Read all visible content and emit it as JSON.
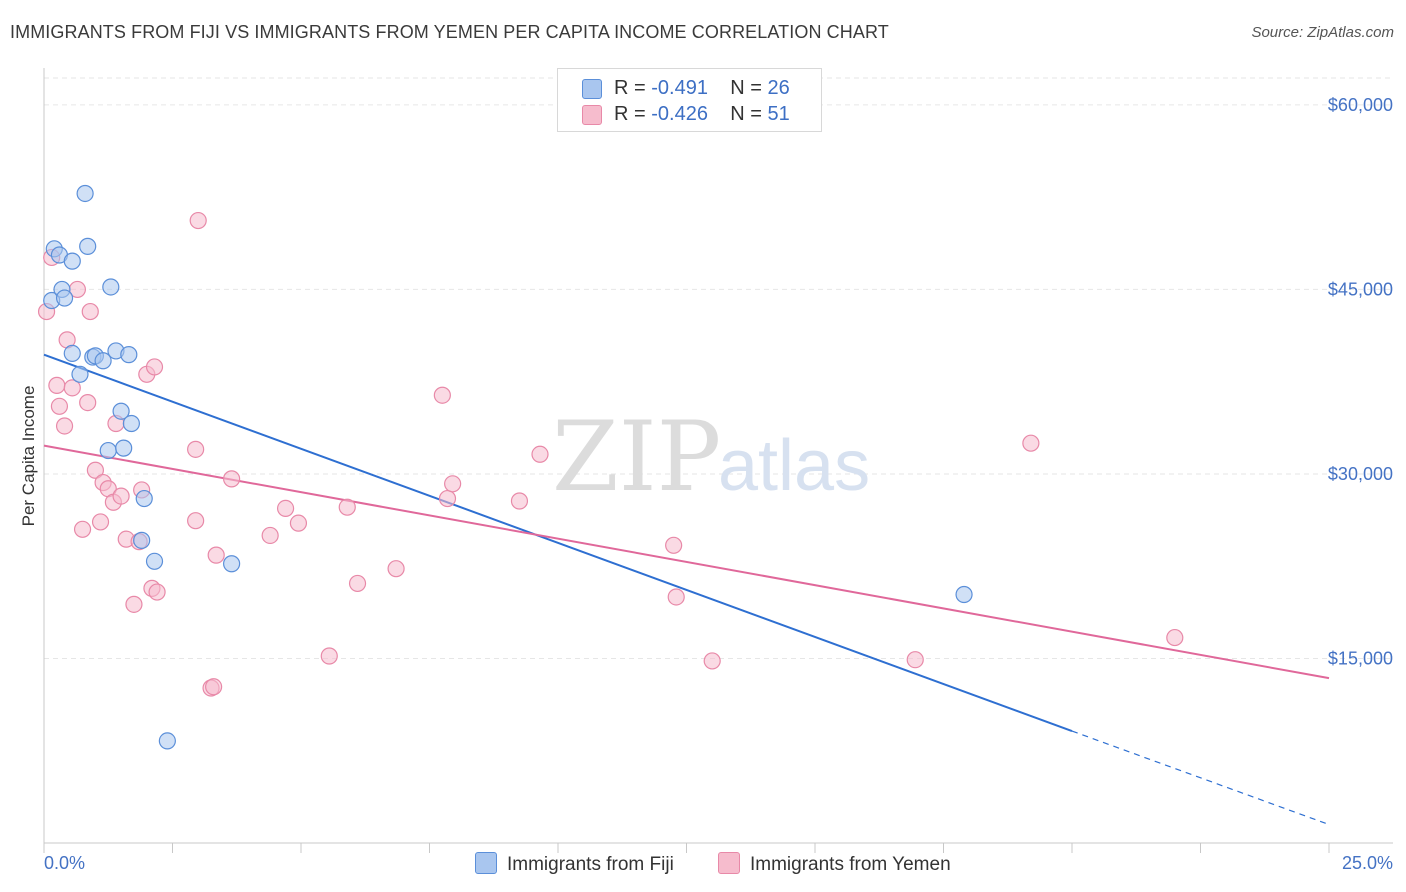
{
  "title": "IMMIGRANTS FROM FIJI VS IMMIGRANTS FROM YEMEN PER CAPITA INCOME CORRELATION CHART",
  "source": "Source: ZipAtlas.com",
  "watermark": {
    "zip": "ZIP",
    "atlas": "atlas"
  },
  "legend": {
    "fiji": {
      "r_label": "R =",
      "r_value": "-0.491",
      "n_label": "N =",
      "n_value": "26"
    },
    "yemen": {
      "r_label": "R =",
      "r_value": "-0.426",
      "n_label": "N =",
      "n_value": "51"
    }
  },
  "colors": {
    "fiji_fill": "#a9c6ef",
    "fiji_stroke": "#5b8fd9",
    "fiji_line": "#2e6fd1",
    "yemen_fill": "#f6bccd",
    "yemen_stroke": "#e889a8",
    "yemen_line": "#e0689a",
    "grid": "#e6e6e6",
    "axis_text": "#4472c4"
  },
  "chart_data": {
    "type": "scatter",
    "ylabel": "Per Capita Income",
    "xlim": [
      0,
      25
    ],
    "ylim": [
      0,
      63000
    ],
    "x_tick_labels": [
      "0.0%",
      "25.0%"
    ],
    "y_ticks": [
      {
        "value": 15000,
        "label": "$15,000"
      },
      {
        "value": 30000,
        "label": "$30,000"
      },
      {
        "value": 45000,
        "label": "$45,000"
      },
      {
        "value": 60000,
        "label": "$60,000"
      }
    ],
    "series": [
      {
        "key": "fiji",
        "name": "Immigrants from Fiji",
        "points": [
          [
            0.15,
            44100
          ],
          [
            0.2,
            48300
          ],
          [
            0.3,
            47800
          ],
          [
            0.35,
            45000
          ],
          [
            0.4,
            44300
          ],
          [
            0.55,
            47300
          ],
          [
            0.55,
            39800
          ],
          [
            0.7,
            38100
          ],
          [
            0.8,
            52800
          ],
          [
            0.85,
            48500
          ],
          [
            0.95,
            39500
          ],
          [
            1.0,
            39600
          ],
          [
            1.15,
            39200
          ],
          [
            1.3,
            45200
          ],
          [
            1.4,
            40000
          ],
          [
            1.5,
            35100
          ],
          [
            1.65,
            39700
          ],
          [
            1.7,
            34100
          ],
          [
            1.25,
            31900
          ],
          [
            1.55,
            32100
          ],
          [
            1.9,
            24600
          ],
          [
            1.95,
            28000
          ],
          [
            2.15,
            22900
          ],
          [
            2.4,
            8300
          ],
          [
            3.65,
            22700
          ],
          [
            17.9,
            20200
          ]
        ],
        "trend": {
          "x0": 0,
          "y0": 39700,
          "x1": 20.0,
          "y1": 9100,
          "dash_to_x": 25.0,
          "dash_to_y": 1500
        }
      },
      {
        "key": "yemen",
        "name": "Immigrants from Yemen",
        "points": [
          [
            0.05,
            43200
          ],
          [
            0.15,
            47600
          ],
          [
            0.25,
            37200
          ],
          [
            0.3,
            35500
          ],
          [
            0.4,
            33900
          ],
          [
            0.45,
            40900
          ],
          [
            0.55,
            37000
          ],
          [
            0.65,
            45000
          ],
          [
            0.75,
            25500
          ],
          [
            0.85,
            35800
          ],
          [
            0.9,
            43200
          ],
          [
            1.0,
            30300
          ],
          [
            1.1,
            26100
          ],
          [
            1.15,
            29300
          ],
          [
            1.25,
            28800
          ],
          [
            1.35,
            27700
          ],
          [
            1.4,
            34100
          ],
          [
            1.5,
            28200
          ],
          [
            1.6,
            24700
          ],
          [
            1.75,
            19400
          ],
          [
            1.85,
            24500
          ],
          [
            1.9,
            28700
          ],
          [
            2.0,
            38100
          ],
          [
            2.1,
            20700
          ],
          [
            2.2,
            20400
          ],
          [
            2.15,
            38700
          ],
          [
            2.95,
            32000
          ],
          [
            2.95,
            26200
          ],
          [
            3.0,
            50600
          ],
          [
            3.25,
            12600
          ],
          [
            3.3,
            12700
          ],
          [
            3.35,
            23400
          ],
          [
            3.65,
            29600
          ],
          [
            4.4,
            25000
          ],
          [
            4.7,
            27200
          ],
          [
            4.95,
            26000
          ],
          [
            5.55,
            15200
          ],
          [
            5.9,
            27300
          ],
          [
            6.1,
            21100
          ],
          [
            6.85,
            22300
          ],
          [
            7.75,
            36400
          ],
          [
            7.85,
            28000
          ],
          [
            7.95,
            29200
          ],
          [
            9.25,
            27800
          ],
          [
            9.65,
            31600
          ],
          [
            12.25,
            24200
          ],
          [
            12.3,
            20000
          ],
          [
            13.0,
            14800
          ],
          [
            16.95,
            14900
          ],
          [
            19.2,
            32500
          ],
          [
            22.0,
            16700
          ]
        ],
        "trend": {
          "x0": 0,
          "y0": 32300,
          "x1": 25.0,
          "y1": 13400
        }
      }
    ],
    "grid": true,
    "legend_position": "top-center"
  }
}
